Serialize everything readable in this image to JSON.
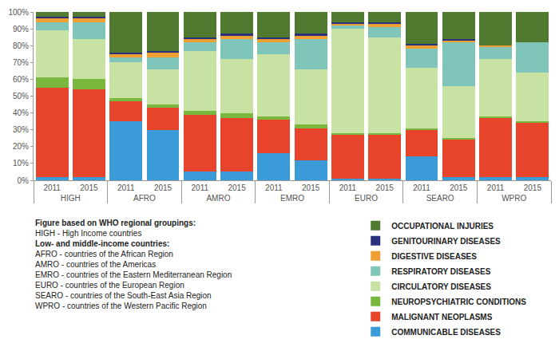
{
  "chart_data": {
    "type": "bar",
    "stacked": true,
    "grid": false,
    "legend": "lower right",
    "categories": [
      [
        "HIGH",
        "2011"
      ],
      [
        "HIGH",
        "2015"
      ],
      [
        "AFRO",
        "2011"
      ],
      [
        "AFRO",
        "2015"
      ],
      [
        "AMRO",
        "2011"
      ],
      [
        "AMRO",
        "2015"
      ],
      [
        "EMRO",
        "2011"
      ],
      [
        "EMRO",
        "2015"
      ],
      [
        "EURO",
        "2011"
      ],
      [
        "EURO",
        "2015"
      ],
      [
        "SEARO",
        "2011"
      ],
      [
        "SEARO",
        "2015"
      ],
      [
        "WPRO",
        "2011"
      ],
      [
        "WPRO",
        "2015"
      ]
    ],
    "ylim": [
      0,
      100
    ],
    "yticks": [
      {
        "value": 0,
        "label": "0%"
      },
      {
        "value": 10,
        "label": "10%"
      },
      {
        "value": 20,
        "label": "20%"
      },
      {
        "value": 30,
        "label": "30%"
      },
      {
        "value": 40,
        "label": "40%"
      },
      {
        "value": 50,
        "label": "50%"
      },
      {
        "value": 60,
        "label": "60%"
      },
      {
        "value": 70,
        "label": "70%"
      },
      {
        "value": 80,
        "label": "80%"
      },
      {
        "value": 90,
        "label": "90%"
      },
      {
        "value": 100,
        "label": "100%"
      }
    ],
    "series": [
      {
        "name": "COMMUNICABLE DISEASES",
        "color": "#3b9bd8",
        "values": [
          2,
          2,
          35,
          30,
          5,
          5,
          16,
          12,
          1,
          1,
          14,
          2,
          2,
          2
        ]
      },
      {
        "name": "MALIGNANT NEOPLASMS",
        "color": "#e8432b",
        "values": [
          53,
          52,
          12,
          13,
          34,
          32,
          20,
          19,
          26,
          26,
          16,
          22,
          35,
          32
        ]
      },
      {
        "name": "NEUROPSYCHIATRIC CONDITIONS",
        "color": "#7ab83d",
        "values": [
          6,
          6,
          2,
          2,
          2,
          3,
          2,
          2,
          1,
          1,
          1,
          1,
          1,
          1
        ]
      },
      {
        "name": "CIRCULATORY DISEASES",
        "color": "#c7e2a3",
        "values": [
          28,
          24,
          21,
          21,
          36,
          32,
          37,
          33,
          62,
          57,
          36,
          31,
          34,
          29
        ]
      },
      {
        "name": "RESPIRATORY DISEASES",
        "color": "#80c5b9",
        "values": [
          5,
          10,
          3,
          7,
          5,
          12,
          7,
          18,
          2,
          6,
          11,
          26,
          7,
          18
        ]
      },
      {
        "name": "DIGESTIVE DISEASES",
        "color": "#f0a032",
        "values": [
          2,
          2,
          2,
          3,
          2,
          2,
          2,
          2,
          1,
          2,
          2,
          1,
          1,
          0
        ]
      },
      {
        "name": "GENITOURINARY DISEASES",
        "color": "#2b307c",
        "values": [
          1,
          1,
          1,
          1,
          1,
          1,
          1,
          1,
          1,
          1,
          1,
          1,
          0,
          0
        ]
      },
      {
        "name": "OCCUPATIONAL INJURIES",
        "color": "#4f7a30",
        "values": [
          3,
          3,
          24,
          23,
          15,
          13,
          15,
          13,
          6,
          6,
          19,
          16,
          20,
          18
        ]
      }
    ],
    "annotations": [
      "Figure based on WHO regional groupings:",
      "HIGH - High Income countries",
      "Low- and middle-income countries:",
      "AFRO - countries of the African Region",
      "AMRO - countries of the Americas",
      "EMRO - countries of the Eastern Mediterranean Region",
      "EURO - countries of the European Region",
      "SEARO - countries of the South-East Asia Region",
      "WPRO - countries of the Western Pacific Region"
    ]
  }
}
